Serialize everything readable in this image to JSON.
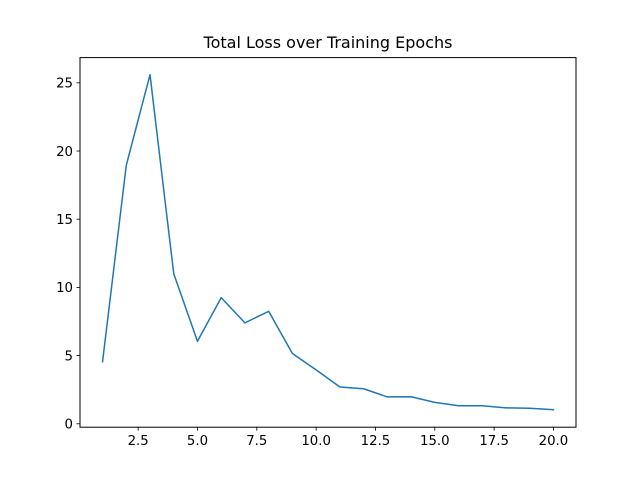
{
  "chart_data": {
    "type": "line",
    "title": "Total Loss over Training Epochs",
    "xlabel": "",
    "ylabel": "",
    "x": [
      1,
      2,
      3,
      4,
      5,
      6,
      7,
      8,
      9,
      10,
      11,
      12,
      13,
      14,
      15,
      16,
      17,
      18,
      19,
      20
    ],
    "series": [
      {
        "name": "Total Loss",
        "color": "#1f77b4",
        "values": [
          4.55,
          18.95,
          25.6,
          11.0,
          6.05,
          9.25,
          7.4,
          8.25,
          5.15,
          3.95,
          2.7,
          2.57,
          1.97,
          1.98,
          1.57,
          1.32,
          1.32,
          1.17,
          1.14,
          1.03
        ]
      }
    ],
    "xlim": [
      0.05,
      20.95
    ],
    "ylim": [
      -0.25,
      26.85
    ],
    "xticks": [
      2.5,
      5.0,
      7.5,
      10.0,
      12.5,
      15.0,
      17.5,
      20.0
    ],
    "xtick_labels": [
      "2.5",
      "5.0",
      "7.5",
      "10.0",
      "12.5",
      "15.0",
      "17.5",
      "20.0"
    ],
    "yticks": [
      0,
      5,
      10,
      15,
      20,
      25
    ],
    "ytick_labels": [
      "0",
      "5",
      "10",
      "15",
      "20",
      "25"
    ],
    "grid": false,
    "legend": null
  }
}
